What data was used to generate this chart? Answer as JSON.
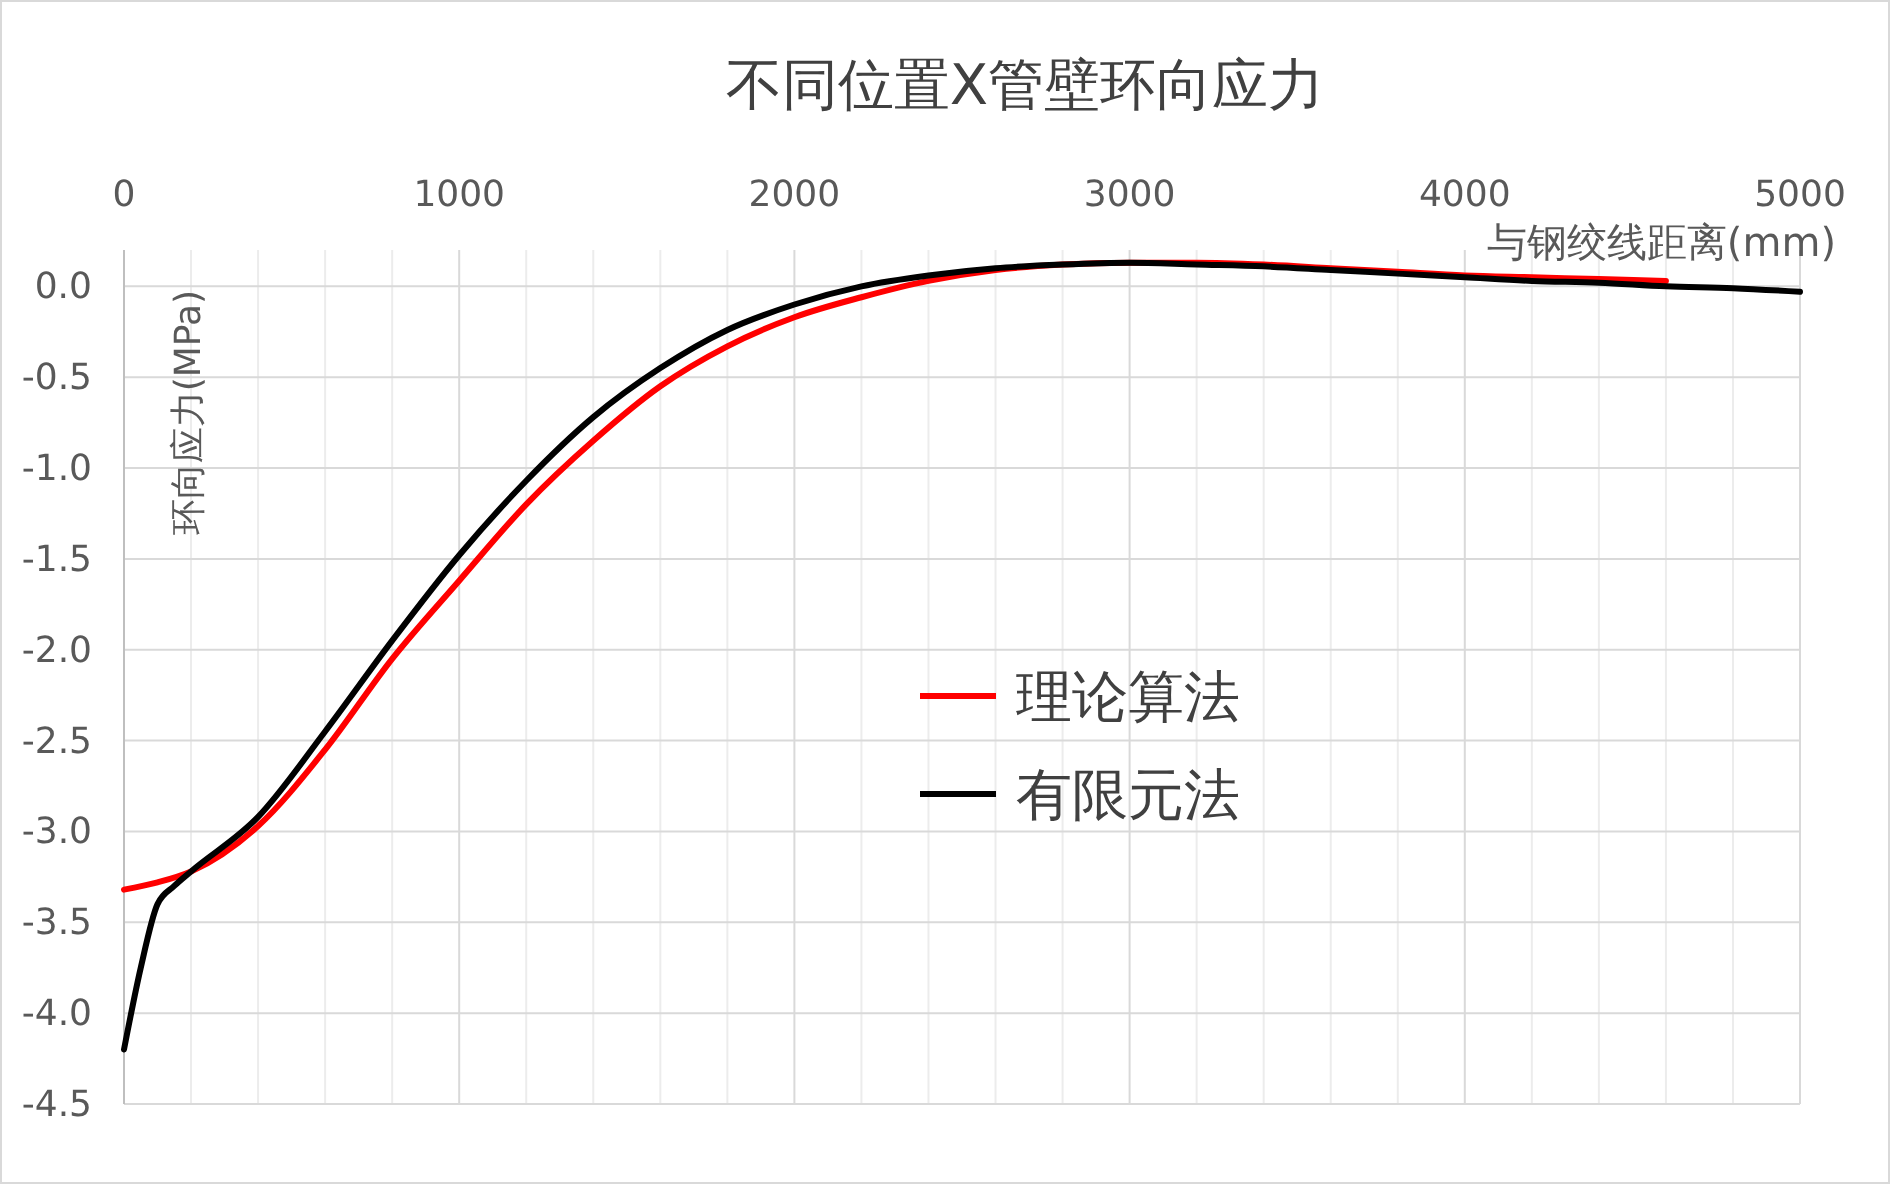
{
  "chart_data": {
    "type": "line",
    "title": "不同位置X管壁环向应力",
    "xlabel": "与钢绞线距离(mm)",
    "ylabel": "环向应力(MPa)",
    "xlim": [
      0,
      5000
    ],
    "xticks": [
      0,
      {
        "value": 200,
        "label": null
      },
      {
        "value": 400,
        "label": null
      },
      {
        "value": 600,
        "label": null
      },
      {
        "value": 800,
        "label": null
      },
      1000,
      {
        "value": 1200,
        "label": null
      },
      {
        "value": 1400,
        "label": null
      },
      {
        "value": 1600,
        "label": null
      },
      {
        "value": 1800,
        "label": null
      },
      2000,
      {
        "value": 2200,
        "label": null
      },
      {
        "value": 2400,
        "label": null
      },
      {
        "value": 2600,
        "label": null
      },
      {
        "value": 2800,
        "label": null
      },
      3000,
      {
        "value": 3200,
        "label": null
      },
      {
        "value": 3400,
        "label": null
      },
      {
        "value": 3600,
        "label": null
      },
      {
        "value": 3800,
        "label": null
      },
      4000,
      {
        "value": 4200,
        "label": null
      },
      {
        "value": 4400,
        "label": null
      },
      {
        "value": 4600,
        "label": null
      },
      {
        "value": 4800,
        "label": null
      },
      5000
    ],
    "ylim": [
      -4.5,
      0.2
    ],
    "yticks": [
      {
        "value": 0,
        "label": "0.0"
      },
      {
        "value": -0.5,
        "label": "-0.5"
      },
      {
        "value": -1,
        "label": "-1.0"
      },
      {
        "value": -1.5,
        "label": "-1.5"
      },
      {
        "value": -2,
        "label": "-2.0"
      },
      {
        "value": -2.5,
        "label": "-2.5"
      },
      {
        "value": -3,
        "label": "-3.0"
      },
      {
        "value": -3.5,
        "label": "-3.5"
      },
      {
        "value": -4,
        "label": "-4.0"
      },
      {
        "value": -4.5,
        "label": "-4.5"
      }
    ],
    "grid": true,
    "legend": "right",
    "marker": "none",
    "line_style": "solid",
    "series": [
      {
        "name": "理论算法",
        "color": "#ff0000",
        "x": [
          0,
          100,
          200,
          400,
          600,
          800,
          1000,
          1200,
          1400,
          1600,
          1800,
          2000,
          2200,
          2400,
          2600,
          2800,
          3000,
          3200,
          3400,
          3600,
          3800,
          4000,
          4200,
          4400,
          4600
        ],
        "values": [
          -3.32,
          -3.28,
          -3.22,
          -2.97,
          -2.55,
          -2.05,
          -1.62,
          -1.2,
          -0.85,
          -0.55,
          -0.33,
          -0.17,
          -0.06,
          0.03,
          0.09,
          0.12,
          0.13,
          0.13,
          0.12,
          0.1,
          0.08,
          0.06,
          0.05,
          0.04,
          0.03
        ]
      },
      {
        "name": "有限元法",
        "color": "#000000",
        "x": [
          0,
          50,
          100,
          150,
          200,
          400,
          600,
          800,
          1000,
          1200,
          1400,
          1600,
          1800,
          2000,
          2200,
          2400,
          2600,
          2800,
          3000,
          3200,
          3400,
          3600,
          3800,
          4000,
          4200,
          4400,
          4600,
          4800,
          5000
        ],
        "values": [
          -4.2,
          -3.75,
          -3.4,
          -3.3,
          -3.22,
          -2.92,
          -2.45,
          -1.95,
          -1.48,
          -1.07,
          -0.72,
          -0.45,
          -0.24,
          -0.1,
          0,
          0.06,
          0.1,
          0.12,
          0.13,
          0.12,
          0.11,
          0.09,
          0.07,
          0.05,
          0.03,
          0.02,
          0,
          -0.01,
          -0.03
        ]
      }
    ]
  }
}
